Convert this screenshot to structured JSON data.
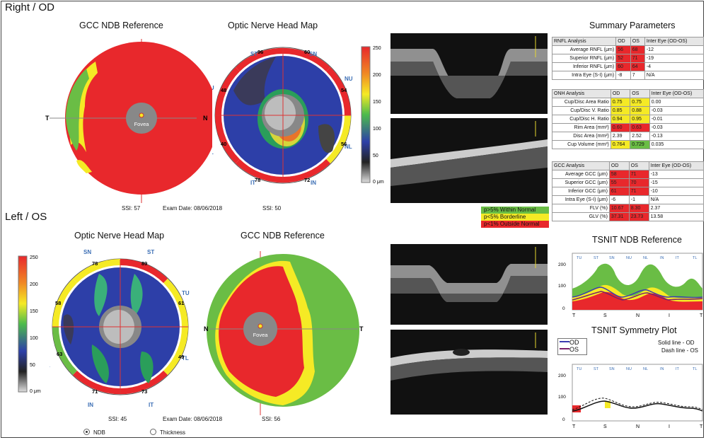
{
  "sections": {
    "right": "Right / OD",
    "left": "Left / OS"
  },
  "od": {
    "gcc_title": "GCC NDB Reference",
    "onh_title": "Optic Nerve Head Map",
    "fovea": "Fovea",
    "axis_t": "T",
    "axis_n": "N",
    "sectors": {
      "st": "ST",
      "sn": "SN",
      "tu": "TU",
      "nu": "NU",
      "tl": "TL",
      "nl": "NL",
      "it": "IT",
      "in": "IN"
    },
    "values": {
      "st": "96",
      "sn": "60",
      "tu": "48",
      "nu": "54",
      "tl": "40",
      "nl": "56",
      "it": "78",
      "in": "72"
    },
    "ssi_gcc": "SSI: 57",
    "exam_date": "Exam Date: 08/06/2018",
    "ssi_onh": "SSI: 50"
  },
  "os": {
    "onh_title": "Optic Nerve Head Map",
    "gcc_title": "GCC NDB Reference",
    "fovea": "Fovea",
    "axis_n": "N",
    "axis_t": "T",
    "sectors": {
      "sn": "SN",
      "st": "ST",
      "nu": "NU",
      "tu": "TU",
      "nl": "NL",
      "tl": "TL",
      "in": "IN",
      "it": "IT"
    },
    "values": {
      "sn": "78",
      "st": "89",
      "nu": "58",
      "tu": "61",
      "nl": "63",
      "tl": "49",
      "in": "71",
      "it": "73"
    },
    "ssi_onh": "SSI: 45",
    "exam_date": "Exam Date: 08/06/2018",
    "ssi_gcc": "SSI: 56"
  },
  "scale_ticks": [
    "250",
    "200",
    "150",
    "100",
    "50",
    "0 μm"
  ],
  "legend": [
    "p>5% Within Normal",
    "p<5% Borderline",
    "p<1% Outside Normal"
  ],
  "colors": {
    "normal": "#6abd45",
    "borderline": "#f5ea25",
    "outside": "#e8282c",
    "od_line": "#3b3bb0",
    "os_line": "#7a1f6a"
  },
  "summary": {
    "title": "Summary Parameters",
    "tables": [
      {
        "header": [
          "RNFL Analysis",
          "OD",
          "OS",
          "Inter Eye (OD-OS)"
        ],
        "rows": [
          {
            "c": [
              "Average RNFL (μm)",
              "56",
              "68",
              "-12"
            ],
            "k": [
              "",
              "r",
              "r",
              ""
            ]
          },
          {
            "c": [
              "Superior RNFL (μm)",
              "52",
              "71",
              "-19"
            ],
            "k": [
              "",
              "r",
              "r",
              ""
            ]
          },
          {
            "c": [
              "Inferior RNFL (μm)",
              "60",
              "64",
              "-4"
            ],
            "k": [
              "",
              "r",
              "r",
              ""
            ]
          },
          {
            "c": [
              "Intra Eye (S-I) (μm)",
              "-8",
              "7",
              "N/A"
            ],
            "k": [
              "",
              "",
              "",
              ""
            ]
          }
        ]
      },
      {
        "header": [
          "ONH Analysis",
          "OD",
          "OS",
          "Inter Eye (OD-OS)"
        ],
        "rows": [
          {
            "c": [
              "Cup/Disc Area Ratio",
              "0.75",
              "0.75",
              "0.00"
            ],
            "k": [
              "",
              "y",
              "y",
              ""
            ]
          },
          {
            "c": [
              "Cup/Disc V. Ratio",
              "0.85",
              "0.88",
              "-0.03"
            ],
            "k": [
              "",
              "y",
              "y",
              ""
            ]
          },
          {
            "c": [
              "Cup/Disc H. Ratio",
              "0.94",
              "0.95",
              "-0.01"
            ],
            "k": [
              "",
              "y",
              "y",
              ""
            ]
          },
          {
            "c": [
              "Rim Area (mm²)",
              "0.60",
              "0.63",
              "-0.03"
            ],
            "k": [
              "",
              "r",
              "r",
              ""
            ]
          },
          {
            "c": [
              "Disc Area (mm²)",
              "2.39",
              "2.52",
              "-0.13"
            ],
            "k": [
              "",
              "",
              "",
              ""
            ]
          },
          {
            "c": [
              "Cup Volume (mm³)",
              "0.764",
              "0.729",
              "0.035"
            ],
            "k": [
              "",
              "y",
              "g",
              ""
            ]
          }
        ]
      },
      {
        "header": [
          "GCC Analysis",
          "OD",
          "OS",
          "Inter Eye (OD-OS)"
        ],
        "rows": [
          {
            "c": [
              "Average GCC (μm)",
              "58",
              "71",
              "-13"
            ],
            "k": [
              "",
              "r",
              "r",
              ""
            ]
          },
          {
            "c": [
              "Superior GCC (μm)",
              "55",
              "70",
              "-15"
            ],
            "k": [
              "",
              "r",
              "r",
              ""
            ]
          },
          {
            "c": [
              "Inferior GCC (μm)",
              "61",
              "71",
              "-10"
            ],
            "k": [
              "",
              "r",
              "r",
              ""
            ]
          },
          {
            "c": [
              "Intra Eye (S-I) (μm)",
              "-6",
              "-1",
              "N/A"
            ],
            "k": [
              "",
              "",
              "",
              ""
            ]
          },
          {
            "c": [
              "FLV (%)",
              "10.67",
              "8.30",
              "2.37"
            ],
            "k": [
              "",
              "r",
              "r",
              ""
            ]
          },
          {
            "c": [
              "GLV (%)",
              "37.31",
              "23.73",
              "13.58"
            ],
            "k": [
              "",
              "r",
              "r",
              ""
            ]
          }
        ]
      }
    ]
  },
  "tsnit_ndb": {
    "title": "TSNIT NDB Reference",
    "xticks": [
      "T",
      "S",
      "N",
      "I",
      "T"
    ],
    "yticks": [
      "200",
      "100",
      "0"
    ],
    "sectors": [
      "TU",
      "ST",
      "SN",
      "NU",
      "NL",
      "IN",
      "IT",
      "TL"
    ]
  },
  "tsnit_sym": {
    "title": "TSNIT Symmetry Plot",
    "legend_od": "OD",
    "legend_os": "OS",
    "solid": "Solid line - OD",
    "dash": "Dash line - OS",
    "xticks": [
      "T",
      "S",
      "N",
      "I",
      "T"
    ],
    "yticks": [
      "200",
      "100",
      "0"
    ],
    "sectors": [
      "TU",
      "ST",
      "SN",
      "NU",
      "NL",
      "IN",
      "IT",
      "TL"
    ]
  },
  "mode": {
    "ndb": "NDB",
    "thickness": "Thickness",
    "selected": "NDB"
  }
}
